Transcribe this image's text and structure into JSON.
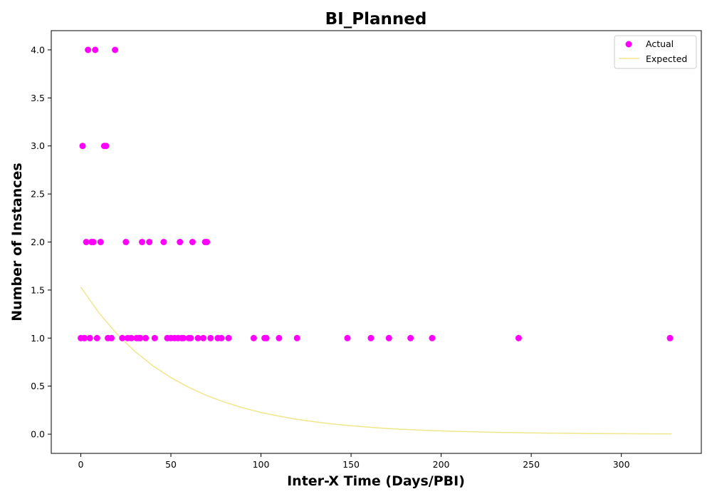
{
  "chart_data": {
    "type": "scatter",
    "title": "BI_Planned",
    "xlabel": "Inter-X Time (Days/PBI)",
    "ylabel": "Number of Instances",
    "xlim": [
      -16.4,
      344.4
    ],
    "ylim": [
      -0.2,
      4.2
    ],
    "xticks": [
      0,
      50,
      100,
      150,
      200,
      250,
      300
    ],
    "yticks": [
      0.0,
      0.5,
      1.0,
      1.5,
      2.0,
      2.5,
      3.0,
      3.5,
      4.0
    ],
    "legend_position": "top-right",
    "grid": false,
    "series": [
      {
        "name": "Actual",
        "kind": "scatter",
        "color": "#ff00ff",
        "points": [
          [
            0,
            1
          ],
          [
            1,
            3
          ],
          [
            2,
            1
          ],
          [
            3,
            2
          ],
          [
            4,
            4
          ],
          [
            5,
            1
          ],
          [
            6,
            2
          ],
          [
            7,
            2
          ],
          [
            8,
            4
          ],
          [
            9,
            1
          ],
          [
            11,
            2
          ],
          [
            13,
            3
          ],
          [
            14,
            3
          ],
          [
            15,
            1
          ],
          [
            17,
            1
          ],
          [
            19,
            4
          ],
          [
            23,
            1
          ],
          [
            25,
            2
          ],
          [
            26,
            1
          ],
          [
            28,
            1
          ],
          [
            31,
            1
          ],
          [
            32,
            1
          ],
          [
            33,
            1
          ],
          [
            34,
            2
          ],
          [
            36,
            1
          ],
          [
            38,
            2
          ],
          [
            41,
            1
          ],
          [
            46,
            2
          ],
          [
            48,
            1
          ],
          [
            50,
            1
          ],
          [
            52,
            1
          ],
          [
            54,
            1
          ],
          [
            55,
            2
          ],
          [
            56,
            1
          ],
          [
            57,
            1
          ],
          [
            60,
            1
          ],
          [
            61,
            1
          ],
          [
            62,
            2
          ],
          [
            65,
            1
          ],
          [
            68,
            1
          ],
          [
            69,
            2
          ],
          [
            70,
            2
          ],
          [
            72,
            1
          ],
          [
            76,
            1
          ],
          [
            78,
            1
          ],
          [
            82,
            1
          ],
          [
            96,
            1
          ],
          [
            102,
            1
          ],
          [
            103,
            1
          ],
          [
            110,
            1
          ],
          [
            120,
            1
          ],
          [
            148,
            1
          ],
          [
            161,
            1
          ],
          [
            171,
            1
          ],
          [
            183,
            1
          ],
          [
            195,
            1
          ],
          [
            243,
            1
          ],
          [
            327,
            1
          ]
        ]
      },
      {
        "name": "Expected",
        "kind": "line",
        "color": "#f0e68c",
        "x": [
          0,
          10,
          20,
          30,
          40,
          50,
          60,
          70,
          80,
          90,
          100,
          110,
          120,
          130,
          140,
          150,
          160,
          170,
          180,
          190,
          200,
          210,
          220,
          230,
          240,
          250,
          260,
          270,
          280,
          290,
          300,
          310,
          320,
          328
        ],
        "y": [
          1.53,
          1.264,
          1.044,
          0.862,
          0.712,
          0.589,
          0.486,
          0.402,
          0.332,
          0.274,
          0.226,
          0.187,
          0.155,
          0.128,
          0.105,
          0.087,
          0.072,
          0.059,
          0.049,
          0.041,
          0.034,
          0.028,
          0.023,
          0.019,
          0.016,
          0.013,
          0.011,
          0.009,
          0.007,
          0.006,
          0.005,
          0.004,
          0.003,
          0.003
        ]
      }
    ]
  }
}
